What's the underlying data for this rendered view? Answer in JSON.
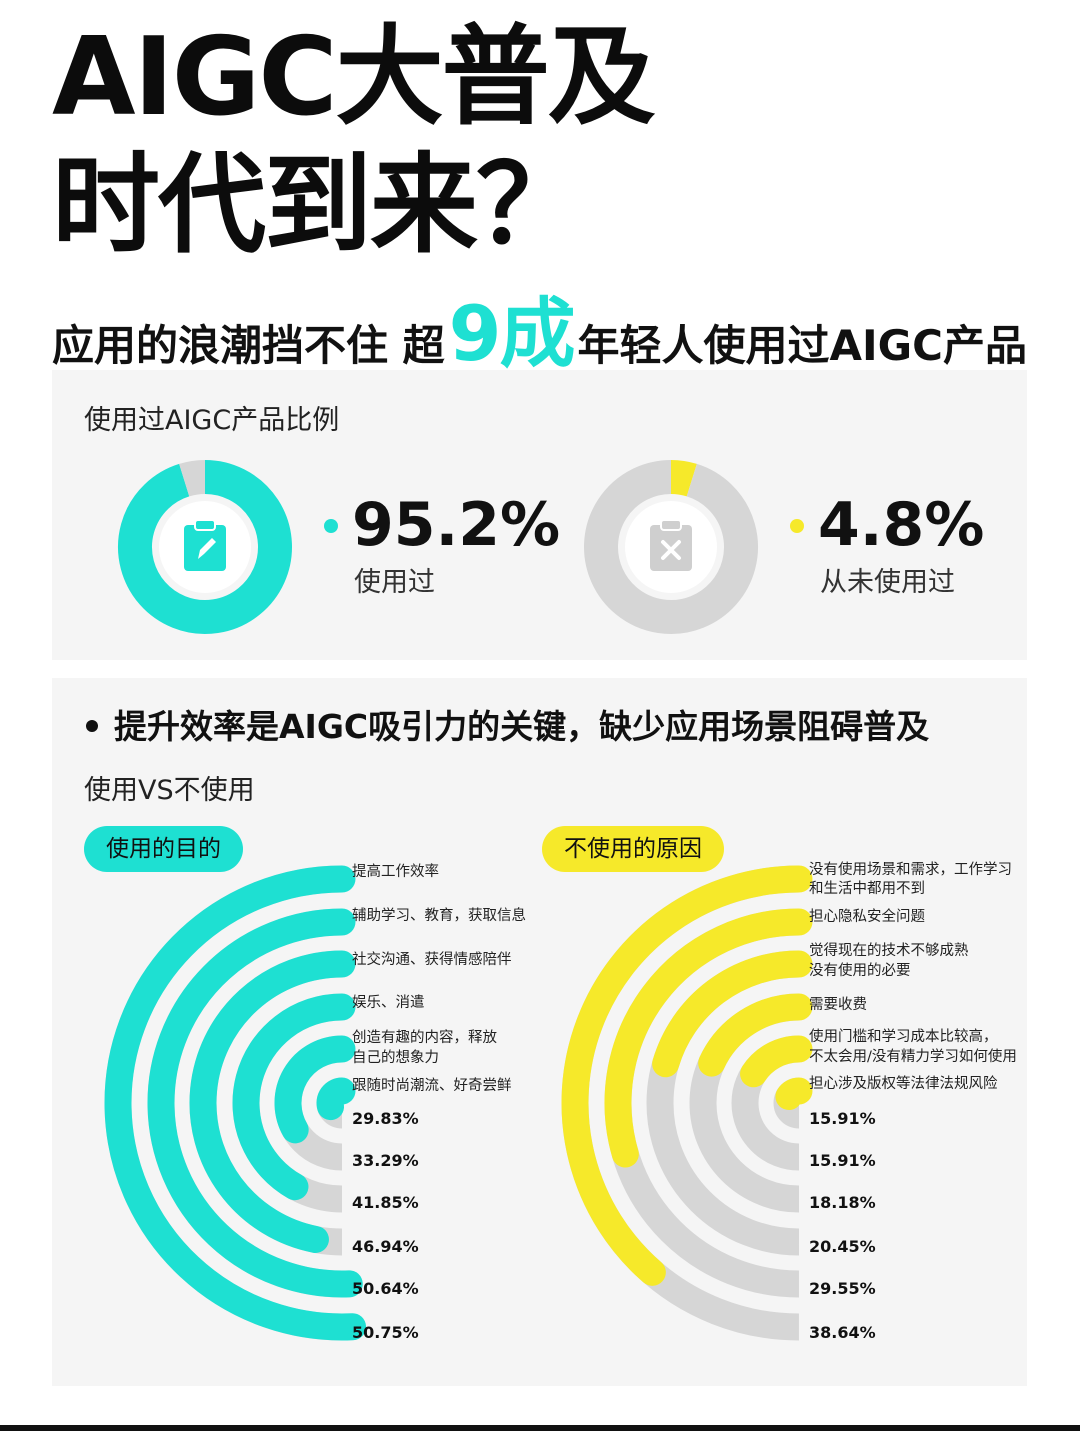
{
  "title": {
    "line1": "AIGC大普及",
    "line2": "时代到来？"
  },
  "subtitle": {
    "before": "应用的浪潮挡不住 超",
    "big": "9成",
    "after": "年轻人使用过AIGC产品"
  },
  "colors": {
    "cyan": "#1ee0d2",
    "yellow": "#f6e92a",
    "gray": "#d6d6d6",
    "panel": "#f5f5f5"
  },
  "usage": {
    "title": "使用过AIGC产品比例",
    "used": {
      "pct": "95.2%",
      "label": "使用过",
      "value": 95.2,
      "icon": "clipboard-edit-icon"
    },
    "never": {
      "pct": "4.8%",
      "label": "从未使用过",
      "value": 4.8,
      "icon": "clipboard-x-icon"
    }
  },
  "section2": {
    "heading": "提升效率是AIGC吸引力的关键，缺少应用场景阻碍普及",
    "vs": "使用VS不使用"
  },
  "chart_data": [
    {
      "type": "radial-bar",
      "title": "使用的目的",
      "categories": [
        "提高工作效率",
        "辅助学习、教育，获取信息",
        "社交沟通、获得情感陪伴",
        "娱乐、消遣",
        "创造有趣的内容，释放自己的想象力",
        "跟随时尚潮流、好奇尝鲜"
      ],
      "labels": [
        [
          "提高工作效率"
        ],
        [
          "辅助学习、教育，获取信息"
        ],
        [
          "社交沟通、获得情感陪伴"
        ],
        [
          "娱乐、消遣"
        ],
        [
          "创造有趣的内容，释放",
          "自己的想象力"
        ],
        [
          "跟随时尚潮流、好奇尝鲜"
        ]
      ],
      "values": [
        50.75,
        50.64,
        46.94,
        41.85,
        33.29,
        29.83
      ],
      "value_labels": [
        "50.75%",
        "50.64%",
        "46.94%",
        "41.85%",
        "33.29%",
        "29.83%"
      ]
    },
    {
      "type": "radial-bar",
      "title": "不使用的原因",
      "categories": [
        "没有使用场景和需求，工作学习和生活中都用不到",
        "担心隐私安全问题",
        "觉得现在的技术不够成熟没有使用的必要",
        "需要收费",
        "使用门槛和学习成本比较高，不太会用/没有精力学习如何使用",
        "担心涉及版权等法律法规风险"
      ],
      "labels": [
        [
          "没有使用场景和需求，工作学习",
          "和生活中都用不到"
        ],
        [
          "担心隐私安全问题"
        ],
        [
          "觉得现在的技术不够成熟",
          "没有使用的必要"
        ],
        [
          "需要收费"
        ],
        [
          "使用门槛和学习成本比较高，",
          "不太会用/没有精力学习如何使用"
        ],
        [
          "担心涉及版权等法律法规风险"
        ]
      ],
      "values": [
        38.64,
        29.55,
        20.45,
        18.18,
        15.91,
        15.91
      ],
      "value_labels": [
        "38.64%",
        "29.55%",
        "20.45%",
        "18.18%",
        "15.91%",
        "15.91%"
      ]
    }
  ]
}
